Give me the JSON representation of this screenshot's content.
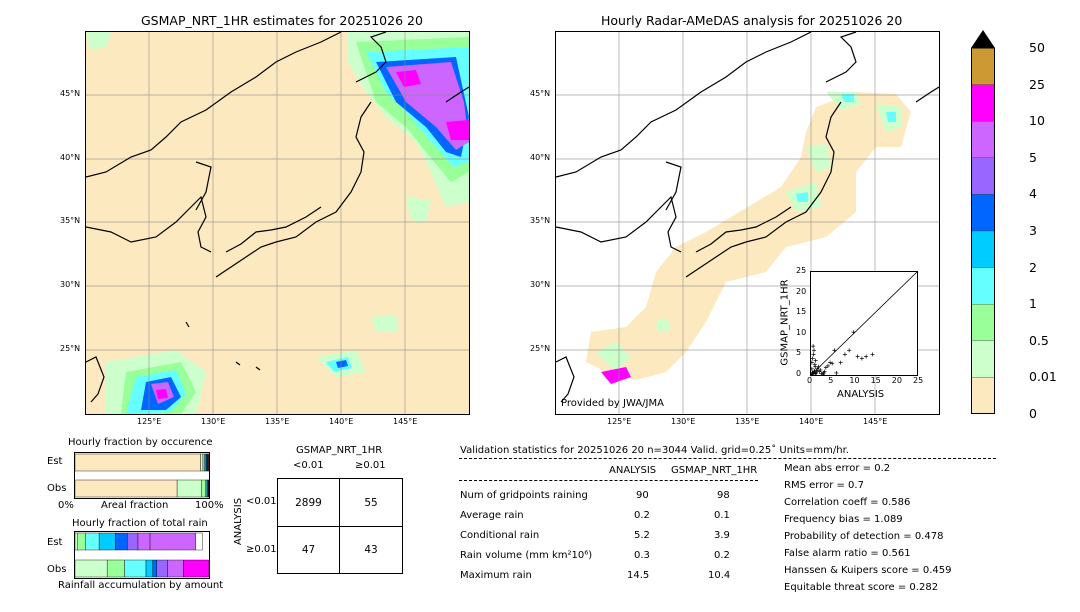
{
  "colors": {
    "ocean_fill": "#fde9c0",
    "light_green": "#ccffcc",
    "green": "#99ff99",
    "cyan_light": "#66ffff",
    "cyan": "#00ccff",
    "blue": "#0066ff",
    "violet": "#9966ff",
    "purple": "#cc66ff",
    "magenta": "#ff00ff",
    "brown": "#cc9933",
    "black": "#000000"
  },
  "left_map": {
    "title": "GSMAP_NRT_1HR estimates for 20251026 20",
    "lat_labels": [
      "45°N",
      "40°N",
      "35°N",
      "30°N",
      "25°N"
    ],
    "lon_labels": [
      "125°E",
      "130°E",
      "135°E",
      "140°E",
      "145°E"
    ]
  },
  "right_map": {
    "title": "Hourly Radar-AMeDAS analysis for 20251026 20",
    "lat_labels": [
      "45°N",
      "40°N",
      "35°N",
      "30°N",
      "25°N"
    ],
    "lon_labels": [
      "125°E",
      "130°E",
      "135°E",
      "140°E",
      "145°E"
    ],
    "credit": "Provided by JWA/JMA"
  },
  "colorbar": {
    "levels": [
      "50",
      "25",
      "10",
      "5",
      "4",
      "3",
      "2",
      "1",
      "0.5",
      "0.01",
      "0"
    ],
    "band_colors": [
      "#cc9933",
      "#ff00ff",
      "#cc66ff",
      "#9966ff",
      "#0066ff",
      "#00ccff",
      "#66ffff",
      "#99ff99",
      "#ccffcc",
      "#fde9c0"
    ]
  },
  "chart_data": [
    {
      "type": "scatter",
      "xlabel": "ANALYSIS",
      "ylabel": "GSMAP_NRT_1HR",
      "xlim": [
        0,
        25
      ],
      "ylim": [
        0,
        25
      ],
      "xticks": [
        "0",
        "5",
        "10",
        "15",
        "20",
        "25"
      ],
      "yticks": [
        "0",
        "5",
        "10",
        "15",
        "20",
        "25"
      ],
      "x": [
        0.3,
        0.5,
        0.8,
        1.0,
        1.2,
        1.5,
        0.2,
        0.4,
        0.6,
        0.7,
        0.9,
        1.1,
        1.4,
        2.0,
        2.2,
        2.5,
        3.0,
        3.5,
        4.0,
        4.5,
        5.0,
        5.5,
        6.0,
        7.0,
        8.0,
        9.0,
        10.0,
        11.0,
        12.0,
        13.0,
        14.5,
        2.8,
        3.2,
        1.8,
        0.1,
        0.2,
        0.3,
        0.5,
        0.8,
        1.0
      ],
      "y": [
        0.2,
        0.4,
        1.0,
        2.0,
        0.5,
        1.5,
        3.0,
        4.0,
        5.0,
        6.0,
        2.5,
        3.5,
        1.0,
        0.8,
        1.2,
        0.3,
        0.5,
        1.8,
        2.2,
        3.0,
        2.8,
        6.0,
        0.5,
        3.0,
        5.0,
        6.0,
        10.4,
        4.5,
        4.0,
        4.5,
        5.0,
        0.2,
        0.8,
        2.0,
        0.1,
        1.5,
        0.6,
        7.0,
        0.9,
        0.3
      ]
    },
    {
      "type": "bar",
      "title": "Hourly fraction by occurence",
      "categories": [
        "Est",
        "Obs"
      ],
      "xlabel": "Areal fraction",
      "xticks": [
        "0%",
        "100%"
      ],
      "stacks": [
        {
          "name": "Est",
          "fractions": [
            0.937,
            0.018,
            0.012,
            0.008,
            0.006,
            0.005,
            0.004,
            0.003,
            0.004,
            0.003
          ],
          "colors": [
            "#fde9c0",
            "#ccffcc",
            "#99ff99",
            "#66ffff",
            "#00ccff",
            "#0066ff",
            "#9966ff",
            "#cc66ff",
            "#ff00ff",
            "#cc9933"
          ]
        },
        {
          "name": "Obs",
          "fractions": [
            0.762,
            0.18,
            0.03,
            0.012,
            0.006,
            0.004,
            0.003,
            0.002,
            0.001
          ],
          "colors": [
            "#fde9c0",
            "#ccffcc",
            "#99ff99",
            "#66ffff",
            "#00ccff",
            "#0066ff",
            "#9966ff",
            "#cc66ff",
            "#ff00ff"
          ]
        }
      ]
    },
    {
      "type": "bar",
      "title": "Hourly fraction of total rain",
      "categories": [
        "Est",
        "Obs"
      ],
      "xlabel": "Rainfall accumulation by amount",
      "stacks": [
        {
          "name": "Est",
          "fractions": [
            0.02,
            0.06,
            0.1,
            0.12,
            0.09,
            0.08,
            0.09,
            0.34,
            0.05
          ],
          "colors": [
            "#ccffcc",
            "#99ff99",
            "#66ffff",
            "#00ccff",
            "#0066ff",
            "#9966ff",
            "#cc66ff",
            "#cc66ff",
            "#ffffff"
          ]
        },
        {
          "name": "Obs",
          "fractions": [
            0.24,
            0.13,
            0.16,
            0.05,
            0.03,
            0.08,
            0.12,
            0.19
          ],
          "colors": [
            "#ccffcc",
            "#99ff99",
            "#66ffff",
            "#00ccff",
            "#0066ff",
            "#9966ff",
            "#cc66ff",
            "#ff00ff"
          ]
        }
      ]
    }
  ],
  "contingency": {
    "title": "GSMAP_NRT_1HR",
    "col_labels": [
      "<0.01",
      "≥0.01"
    ],
    "row_axis": "ANALYSIS",
    "row_labels": [
      "<0.01",
      "≥0.01"
    ],
    "cells": [
      "2899",
      "55",
      "47",
      "43"
    ]
  },
  "validation": {
    "header": "Validation statistics for 20251026 20  n=3044 Valid. grid=0.25˚ Units=mm/hr.",
    "col_analysis": "ANALYSIS",
    "col_gsmap": "GSMAP_NRT_1HR",
    "rows": [
      {
        "label": "Num of gridpoints raining",
        "analysis": "90",
        "gsmap": "98"
      },
      {
        "label": "Average rain",
        "analysis": "0.2",
        "gsmap": "0.1"
      },
      {
        "label": "Conditional rain",
        "analysis": "5.2",
        "gsmap": "3.9"
      },
      {
        "label": "Rain volume (mm km²10⁶)",
        "analysis": "0.3",
        "gsmap": "0.2"
      },
      {
        "label": "Maximum rain",
        "analysis": "14.5",
        "gsmap": "10.4"
      }
    ],
    "scores": [
      "Mean abs error =    0.2",
      "RMS error =    0.7",
      "Correlation coeff =  0.586",
      "Frequency bias =  1.089",
      "Probability of detection =  0.478",
      "False alarm ratio =  0.561",
      "Hanssen & Kuipers score =  0.459",
      "Equitable threat score =  0.282"
    ]
  }
}
